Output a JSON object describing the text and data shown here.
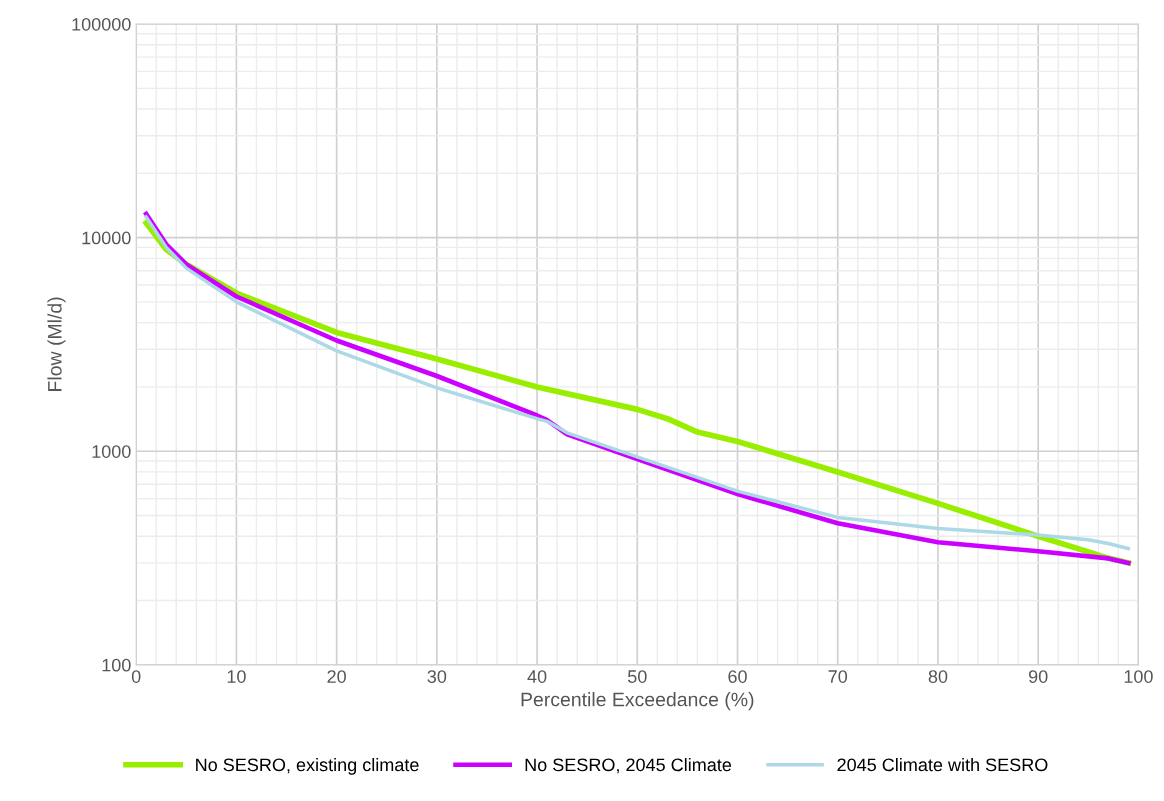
{
  "chart_data": {
    "type": "line",
    "xlabel": "Percentile Exceedance (%)",
    "ylabel": "Flow (Ml/d)",
    "log": "y",
    "grid": true,
    "legend": "bottom",
    "line_style": "solid",
    "marker": "none",
    "xlim": [
      0,
      100
    ],
    "xticks": [
      0,
      10,
      20,
      30,
      40,
      50,
      60,
      70,
      80,
      90,
      100
    ],
    "ylim": [
      100,
      100000
    ],
    "yticks": [
      100,
      1000,
      10000,
      100000
    ],
    "series": [
      {
        "name": "No SESRO, existing climate",
        "color": "#99ee00",
        "x": [
          1,
          3,
          5,
          10,
          20,
          30,
          40,
          50,
          53,
          56,
          60,
          70,
          80,
          90,
          97,
          99
        ],
        "values": [
          11700,
          8800,
          7500,
          5500,
          3600,
          2700,
          2000,
          1570,
          1420,
          1230,
          1110,
          800,
          570,
          400,
          316,
          300
        ]
      },
      {
        "name": "No SESRO, 2045 Climate",
        "color": "#cc00ff",
        "x": [
          1,
          3,
          5,
          10,
          20,
          30,
          40,
          41,
          43,
          50,
          60,
          70,
          80,
          90,
          97,
          99
        ],
        "values": [
          12900,
          9300,
          7500,
          5300,
          3300,
          2250,
          1470,
          1400,
          1200,
          920,
          630,
          460,
          375,
          340,
          315,
          300
        ]
      },
      {
        "name": "2045 Climate with SESRO",
        "color": "#add8e6",
        "x": [
          1,
          3,
          5,
          10,
          20,
          30,
          40,
          41,
          43,
          50,
          60,
          70,
          80,
          90,
          95,
          97,
          99
        ],
        "values": [
          12500,
          9000,
          7200,
          5000,
          2950,
          1980,
          1420,
          1380,
          1220,
          940,
          650,
          490,
          435,
          405,
          385,
          370,
          350
        ]
      }
    ]
  }
}
